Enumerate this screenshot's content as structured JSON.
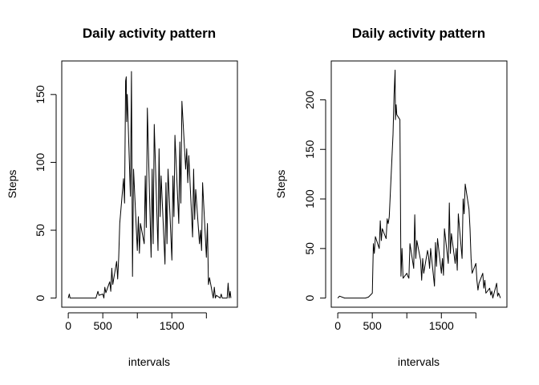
{
  "chart_data": [
    {
      "type": "line",
      "title": "Daily activity pattern",
      "xlabel": "intervals",
      "ylabel": "Steps",
      "xlim": [
        0,
        2355
      ],
      "ylim": [
        0,
        168
      ],
      "xticks": [
        0,
        500,
        1500
      ],
      "yticks": [
        0,
        50,
        100,
        150
      ],
      "grid": false,
      "legend": "none",
      "x": [
        0,
        15,
        25,
        45,
        100,
        200,
        300,
        400,
        430,
        445,
        500,
        515,
        530,
        545,
        600,
        615,
        630,
        645,
        700,
        715,
        730,
        745,
        800,
        815,
        830,
        840,
        845,
        855,
        900,
        915,
        930,
        945,
        1000,
        1015,
        1030,
        1045,
        1100,
        1115,
        1130,
        1145,
        1200,
        1215,
        1230,
        1245,
        1300,
        1315,
        1330,
        1345,
        1400,
        1415,
        1430,
        1445,
        1500,
        1515,
        1530,
        1545,
        1600,
        1615,
        1630,
        1645,
        1700,
        1715,
        1730,
        1745,
        1800,
        1815,
        1830,
        1845,
        1900,
        1915,
        1930,
        1945,
        2000,
        2015,
        2030,
        2045,
        2100,
        2115,
        2130,
        2145,
        2200,
        2215,
        2230,
        2245,
        2300,
        2315,
        2330,
        2345,
        2355
      ],
      "values": [
        0,
        3,
        0,
        0,
        0,
        0,
        0,
        0,
        5,
        2,
        3,
        0,
        8,
        4,
        12,
        5,
        22,
        10,
        27,
        14,
        30,
        55,
        88,
        70,
        160,
        163,
        130,
        150,
        75,
        167,
        16,
        95,
        35,
        60,
        33,
        55,
        40,
        90,
        52,
        140,
        30,
        95,
        40,
        128,
        35,
        110,
        60,
        90,
        25,
        85,
        40,
        95,
        28,
        90,
        60,
        120,
        55,
        115,
        70,
        145,
        95,
        110,
        85,
        105,
        45,
        95,
        58,
        80,
        40,
        50,
        35,
        85,
        30,
        55,
        10,
        15,
        0,
        8,
        0,
        2,
        0,
        3,
        0,
        0,
        0,
        11,
        0,
        5,
        0
      ]
    },
    {
      "type": "line",
      "title": "Daily activity pattern",
      "xlabel": "intervals",
      "ylabel": "Steps",
      "xlim": [
        0,
        2355
      ],
      "ylim": [
        0,
        230
      ],
      "xticks": [
        0,
        500,
        1500
      ],
      "yticks": [
        0,
        50,
        100,
        150,
        200
      ],
      "grid": false,
      "legend": "none",
      "x": [
        0,
        25,
        100,
        200,
        300,
        400,
        445,
        500,
        515,
        530,
        545,
        600,
        615,
        630,
        645,
        700,
        715,
        730,
        745,
        800,
        815,
        830,
        835,
        845,
        855,
        900,
        915,
        930,
        945,
        1000,
        1015,
        1030,
        1045,
        1100,
        1115,
        1130,
        1145,
        1200,
        1215,
        1230,
        1245,
        1300,
        1315,
        1330,
        1345,
        1400,
        1415,
        1430,
        1445,
        1500,
        1515,
        1530,
        1545,
        1600,
        1615,
        1630,
        1645,
        1700,
        1715,
        1730,
        1745,
        1800,
        1815,
        1830,
        1845,
        1900,
        1915,
        1930,
        1945,
        2000,
        2015,
        2030,
        2045,
        2100,
        2115,
        2130,
        2145,
        2200,
        2215,
        2230,
        2245,
        2300,
        2315,
        2330,
        2355
      ],
      "values": [
        0,
        2,
        0,
        0,
        0,
        0,
        1,
        5,
        55,
        45,
        62,
        50,
        78,
        58,
        70,
        60,
        80,
        75,
        82,
        165,
        205,
        230,
        180,
        195,
        185,
        180,
        22,
        50,
        20,
        25,
        22,
        20,
        55,
        30,
        84,
        40,
        58,
        38,
        18,
        40,
        25,
        48,
        42,
        30,
        50,
        12,
        56,
        32,
        60,
        25,
        40,
        23,
        70,
        35,
        96,
        45,
        65,
        35,
        50,
        28,
        85,
        40,
        100,
        85,
        115,
        90,
        70,
        40,
        25,
        35,
        18,
        8,
        15,
        25,
        10,
        18,
        5,
        10,
        3,
        7,
        0,
        15,
        2,
        5,
        0
      ]
    }
  ]
}
